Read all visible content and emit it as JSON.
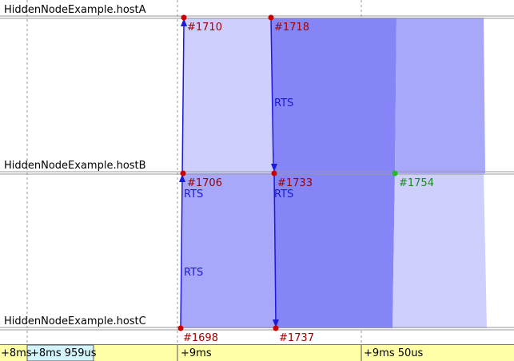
{
  "colors": {
    "axis_line": "#999999",
    "grid_line": "#9a9a9a",
    "event_red": "#cc0000",
    "event_label_red": "#9a0000",
    "event_green": "#22bb22",
    "event_label_green": "#1a8a1a",
    "message_blue": "#1a1ad8",
    "light_band": "#cfcffd",
    "mid_band": "#a8a8fb",
    "dark_band": "#8585f8",
    "timeline_bg": "#ffffa8",
    "timeline_first_bg": "#d4f4fc"
  },
  "hosts": [
    {
      "id": "A",
      "label": "HiddenNodeExample.hostA"
    },
    {
      "id": "B",
      "label": "HiddenNodeExample.hostB"
    },
    {
      "id": "C",
      "label": "HiddenNodeExample.hostC"
    }
  ],
  "events": [
    {
      "id": "#1710",
      "host": "A",
      "t": "+9ms",
      "color": "red"
    },
    {
      "id": "#1718",
      "host": "A",
      "t": "+9ms 24us",
      "color": "red"
    },
    {
      "id": "#1706",
      "host": "B",
      "t": "+9ms",
      "color": "red"
    },
    {
      "id": "#1733",
      "host": "B",
      "t": "+9ms 25us",
      "color": "red"
    },
    {
      "id": "#1754",
      "host": "B",
      "t": "+9ms 60us",
      "color": "green"
    },
    {
      "id": "#1698",
      "host": "C",
      "t": "+9ms",
      "color": "red"
    },
    {
      "id": "#1737",
      "host": "C",
      "t": "+9ms 26us",
      "color": "red"
    }
  ],
  "messages": [
    {
      "name": "RTS",
      "from": "#1698",
      "to": "#1710"
    },
    {
      "name": "RTS",
      "from": "#1698",
      "to": "#1706"
    },
    {
      "name": "RTS",
      "from": "#1718",
      "to": "#1733"
    },
    {
      "name": "RTS",
      "from": "#1733",
      "to": "#1737"
    }
  ],
  "timeline": {
    "ticks": [
      "+8ms",
      "+8ms 959us",
      "+9ms",
      "+9ms 50us"
    ]
  }
}
